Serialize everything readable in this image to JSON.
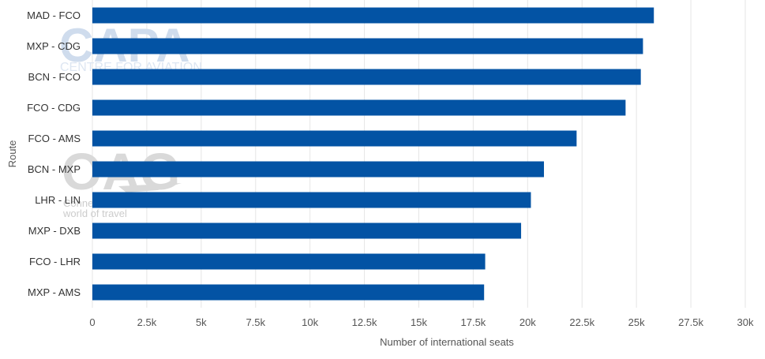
{
  "chart_data": {
    "type": "bar",
    "orientation": "horizontal",
    "categories": [
      "MAD - FCO",
      "MXP - CDG",
      "BCN - FCO",
      "FCO - CDG",
      "FCO - AMS",
      "BCN - MXP",
      "LHR - LIN",
      "MXP - DXB",
      "FCO - LHR",
      "MXP - AMS"
    ],
    "values": [
      25800,
      25300,
      25200,
      24500,
      22250,
      20750,
      20150,
      19700,
      18050,
      18000
    ],
    "xlabel": "Number of international seats",
    "ylabel": "Route",
    "xlim": [
      0,
      30000
    ],
    "xticks": [
      0,
      2500,
      5000,
      7500,
      10000,
      12500,
      15000,
      17500,
      20000,
      22500,
      25000,
      27500,
      30000
    ],
    "xtick_labels": [
      "0",
      "2.5k",
      "5k",
      "7.5k",
      "10k",
      "12.5k",
      "15k",
      "17.5k",
      "20k",
      "22.5k",
      "25k",
      "27.5k",
      "30k"
    ],
    "grid": "vertical",
    "bar_color": "#0353a4"
  },
  "watermarks": {
    "capa_logo": "CAPA",
    "capa_tagline": "CENTRE FOR AVIATION",
    "oag_logo": "OAG",
    "oag_tagline_1": "Conne",
    "oag_tagline_2": "world of travel"
  }
}
